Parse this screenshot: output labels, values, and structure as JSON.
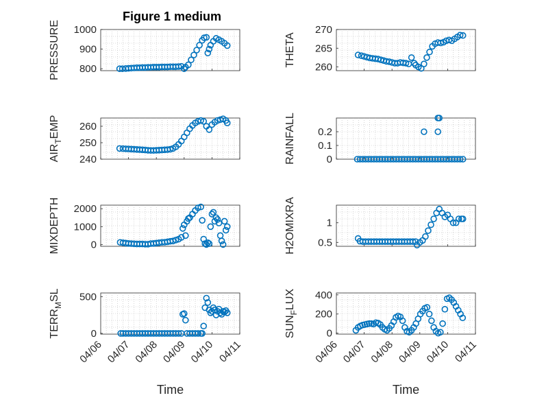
{
  "figure_title": "Figure 1 medium",
  "colors": {
    "series": "#0072bd",
    "axes": "#262626",
    "grid": "#b8b8b8"
  },
  "chart_data": [
    {
      "type": "scatter",
      "ylabel": "PRESSURE",
      "xlabel": "",
      "xlim": [
        0,
        5
      ],
      "xticks": [],
      "ylim": [
        790,
        1000
      ],
      "yticks": [
        800,
        900,
        1000
      ],
      "ytick_labels": [
        "800",
        "900",
        "1000"
      ],
      "grid": true,
      "series": [
        {
          "x": [
            0.68,
            0.78,
            0.9,
            1.0,
            1.1,
            1.2,
            1.3,
            1.4,
            1.5,
            1.6,
            1.7,
            1.8,
            1.9,
            2.0,
            2.1,
            2.2,
            2.3,
            2.4,
            2.5,
            2.6,
            2.7,
            2.8,
            2.9,
            3.0,
            3.05,
            3.15,
            3.25,
            3.35,
            3.45,
            3.55,
            3.65,
            3.72,
            3.8,
            3.85,
            3.9,
            3.95,
            4.05,
            4.15,
            4.25,
            4.35,
            4.45,
            4.55
          ],
          "y": [
            800,
            800,
            801,
            802,
            803,
            804,
            805,
            805,
            806,
            806,
            807,
            807,
            808,
            808,
            808,
            809,
            809,
            809,
            810,
            810,
            810,
            811,
            812,
            800,
            808,
            820,
            845,
            870,
            895,
            920,
            945,
            958,
            960,
            880,
            900,
            920,
            940,
            955,
            948,
            940,
            930,
            918
          ]
        }
      ]
    },
    {
      "type": "scatter",
      "ylabel": "THETA",
      "xlabel": "",
      "xlim": [
        0,
        5
      ],
      "xticks": [],
      "ylim": [
        259,
        270
      ],
      "yticks": [
        260,
        265,
        270
      ],
      "ytick_labels": [
        "260",
        "265",
        "270"
      ],
      "grid": true,
      "series": [
        {
          "x": [
            0.78,
            0.9,
            1.0,
            1.1,
            1.2,
            1.3,
            1.4,
            1.5,
            1.6,
            1.7,
            1.8,
            1.9,
            2.0,
            2.1,
            2.2,
            2.3,
            2.4,
            2.5,
            2.6,
            2.7,
            2.8,
            2.85,
            2.95,
            3.05,
            3.15,
            3.25,
            3.35,
            3.45,
            3.55,
            3.65,
            3.75,
            3.85,
            3.95,
            4.05,
            4.15,
            4.25,
            4.35,
            4.45,
            4.55
          ],
          "y": [
            263.2,
            263.0,
            262.8,
            262.6,
            262.4,
            262.3,
            262.2,
            262.1,
            261.9,
            261.7,
            261.5,
            261.4,
            261.2,
            261.0,
            261.0,
            261.2,
            261.1,
            261.0,
            260.8,
            262.5,
            261.0,
            260.5,
            260.0,
            259.6,
            260.8,
            262.5,
            264.0,
            265.5,
            266.2,
            266.5,
            266.4,
            266.6,
            267.0,
            267.2,
            267.0,
            267.5,
            268.0,
            268.5,
            268.4
          ]
        }
      ]
    },
    {
      "type": "scatter",
      "ylabel": "AIR_TEMP",
      "ylabel_parts": {
        "main": "AIR",
        "sub": "T",
        "rest": "EMP"
      },
      "xlabel": "",
      "xlim": [
        0,
        5
      ],
      "xticks": [],
      "ylim": [
        240,
        265
      ],
      "yticks": [
        240,
        250,
        260
      ],
      "ytick_labels": [
        "240",
        "250",
        "260"
      ],
      "grid": true,
      "series": [
        {
          "x": [
            0.68,
            0.8,
            0.9,
            1.0,
            1.1,
            1.2,
            1.3,
            1.4,
            1.5,
            1.6,
            1.7,
            1.8,
            1.9,
            2.0,
            2.1,
            2.2,
            2.3,
            2.4,
            2.5,
            2.6,
            2.7,
            2.8,
            2.9,
            3.0,
            3.1,
            3.2,
            3.3,
            3.4,
            3.5,
            3.6,
            3.7,
            3.8,
            3.9,
            4.0,
            4.1,
            4.2,
            4.3,
            4.4,
            4.5,
            4.55
          ],
          "y": [
            246.5,
            246.4,
            246.3,
            246.2,
            246.1,
            246.0,
            245.9,
            245.8,
            245.7,
            245.6,
            245.4,
            245.3,
            245.3,
            245.4,
            245.5,
            245.6,
            245.7,
            245.8,
            246.0,
            246.5,
            247.5,
            249.0,
            251.0,
            253.5,
            256.0,
            258.5,
            260.5,
            262.0,
            263.0,
            263.5,
            263.0,
            260.0,
            258.0,
            261.0,
            262.5,
            263.5,
            264.0,
            264.5,
            263.5,
            262.0
          ]
        }
      ]
    },
    {
      "type": "scatter",
      "ylabel": "RAINFALL",
      "xlabel": "",
      "xlim": [
        0,
        5
      ],
      "xticks": [],
      "ylim": [
        0,
        0.3
      ],
      "yticks": [
        0,
        0.1,
        0.2
      ],
      "ytick_labels": [
        "0",
        "0.1",
        "0.2"
      ],
      "grid": true,
      "series": [
        {
          "x": [
            0.75,
            0.85,
            0.95,
            1.05,
            1.15,
            1.25,
            1.35,
            1.45,
            1.55,
            1.65,
            1.75,
            1.85,
            1.95,
            2.05,
            2.15,
            2.25,
            2.35,
            2.45,
            2.55,
            2.65,
            2.75,
            2.85,
            2.95,
            3.05,
            3.15,
            3.25,
            3.35,
            3.45,
            3.55,
            3.65,
            3.75,
            3.85,
            3.95,
            4.05,
            4.15,
            4.25,
            4.35,
            4.45,
            4.55,
            3.15,
            3.65,
            3.65,
            3.7
          ],
          "y": [
            0,
            0,
            0,
            0,
            0,
            0,
            0,
            0,
            0,
            0,
            0,
            0,
            0,
            0,
            0,
            0,
            0,
            0,
            0,
            0,
            0,
            0,
            0,
            0,
            0,
            0,
            0,
            0,
            0,
            0,
            0,
            0,
            0,
            0,
            0,
            0,
            0,
            0,
            0,
            0.2,
            0.2,
            0.3,
            0.3
          ]
        }
      ]
    },
    {
      "type": "scatter",
      "ylabel": "MIXDEPTH",
      "xlabel": "",
      "xlim": [
        0,
        5
      ],
      "xticks": [],
      "ylim": [
        -100,
        2200
      ],
      "yticks": [
        0,
        1000,
        2000
      ],
      "ytick_labels": [
        "0",
        "1000",
        "2000"
      ],
      "grid": true,
      "series": [
        {
          "x": [
            0.7,
            0.8,
            0.9,
            1.0,
            1.1,
            1.2,
            1.3,
            1.4,
            1.5,
            1.6,
            1.7,
            1.8,
            1.9,
            2.0,
            2.1,
            2.2,
            2.3,
            2.4,
            2.5,
            2.6,
            2.7,
            2.8,
            2.9,
            2.95,
            3.0,
            3.05,
            3.1,
            3.15,
            3.2,
            3.3,
            3.4,
            3.5,
            3.6,
            3.65,
            3.7,
            3.75,
            3.8,
            3.85,
            3.9,
            3.95,
            4.0,
            4.05,
            4.1,
            4.15,
            4.2,
            4.25,
            4.3,
            4.35,
            4.4,
            4.45,
            4.5,
            4.55
          ],
          "y": [
            120,
            100,
            80,
            60,
            50,
            40,
            30,
            30,
            30,
            20,
            20,
            50,
            60,
            80,
            100,
            120,
            130,
            150,
            180,
            200,
            250,
            300,
            400,
            900,
            1100,
            500,
            1300,
            1450,
            1500,
            1700,
            1900,
            2050,
            2100,
            1350,
            300,
            50,
            0,
            100,
            50,
            1000,
            1700,
            1800,
            1300,
            1500,
            1400,
            1200,
            500,
            200,
            0,
            1300,
            800,
            1000
          ]
        }
      ]
    },
    {
      "type": "scatter",
      "ylabel": "H2OMIXRA",
      "xlabel": "",
      "xlim": [
        0,
        5
      ],
      "xticks": [],
      "ylim": [
        0.4,
        1.45
      ],
      "yticks": [
        0.5,
        1
      ],
      "ytick_labels": [
        "0.5",
        "1"
      ],
      "grid": true,
      "series": [
        {
          "x": [
            0.78,
            0.85,
            0.95,
            1.05,
            1.15,
            1.25,
            1.35,
            1.45,
            1.55,
            1.65,
            1.75,
            1.85,
            1.95,
            2.05,
            2.15,
            2.25,
            2.35,
            2.45,
            2.55,
            2.65,
            2.75,
            2.85,
            2.9,
            3.0,
            3.1,
            3.2,
            3.3,
            3.4,
            3.5,
            3.6,
            3.7,
            3.8,
            3.9,
            4.0,
            4.1,
            4.2,
            4.3,
            4.4,
            4.5,
            4.55
          ],
          "y": [
            0.6,
            0.53,
            0.52,
            0.52,
            0.52,
            0.52,
            0.52,
            0.52,
            0.52,
            0.52,
            0.52,
            0.52,
            0.52,
            0.52,
            0.52,
            0.52,
            0.52,
            0.52,
            0.52,
            0.52,
            0.52,
            0.52,
            0.43,
            0.5,
            0.55,
            0.65,
            0.8,
            0.95,
            1.1,
            1.25,
            1.35,
            1.25,
            1.15,
            1.2,
            1.1,
            1.0,
            1.0,
            1.1,
            1.1,
            1.1
          ]
        }
      ]
    },
    {
      "type": "scatter",
      "ylabel": "TERR_MSL",
      "ylabel_parts": {
        "main": "TERR",
        "sub": "M",
        "rest": "SL"
      },
      "xlabel": "Time",
      "xlim": [
        0,
        5
      ],
      "xticks": [
        0,
        1,
        2,
        3,
        4,
        5
      ],
      "xtick_labels": [
        "04/06",
        "04/07",
        "04/08",
        "04/09",
        "04/10",
        "04/11"
      ],
      "ylim": [
        -10,
        550
      ],
      "yticks": [
        0,
        500
      ],
      "ytick_labels": [
        "0",
        "500"
      ],
      "grid": true,
      "series": [
        {
          "x": [
            0.72,
            0.8,
            0.9,
            1.0,
            1.1,
            1.2,
            1.3,
            1.4,
            1.5,
            1.6,
            1.7,
            1.8,
            1.9,
            2.0,
            2.1,
            2.2,
            2.3,
            2.4,
            2.5,
            2.6,
            2.7,
            2.8,
            2.9,
            2.95,
            3.0,
            3.05,
            3.1,
            3.2,
            3.3,
            3.4,
            3.5,
            3.6,
            3.65,
            3.7,
            3.75,
            3.8,
            3.85,
            3.9,
            3.95,
            4.0,
            4.05,
            4.1,
            4.15,
            4.2,
            4.25,
            4.3,
            4.35,
            4.4,
            4.45,
            4.5,
            4.55
          ],
          "y": [
            0,
            0,
            0,
            0,
            0,
            0,
            0,
            0,
            0,
            0,
            0,
            0,
            0,
            0,
            0,
            0,
            0,
            0,
            0,
            0,
            0,
            0,
            0,
            260,
            270,
            180,
            0,
            0,
            0,
            0,
            0,
            0,
            0,
            100,
            350,
            480,
            420,
            320,
            280,
            300,
            350,
            320,
            250,
            300,
            330,
            280,
            260,
            300,
            290,
            310,
            280
          ]
        }
      ]
    },
    {
      "type": "scatter",
      "ylabel": "SUN_FLUX",
      "ylabel_parts": {
        "main": "SUN",
        "sub": "F",
        "rest": "LUX"
      },
      "xlabel": "Time",
      "xlim": [
        0,
        5
      ],
      "xticks": [
        0,
        1,
        2,
        3,
        4,
        5
      ],
      "xtick_labels": [
        "04/06",
        "04/07",
        "04/08",
        "04/09",
        "04/10",
        "04/11"
      ],
      "ylim": [
        -10,
        420
      ],
      "yticks": [
        0,
        200,
        400
      ],
      "ytick_labels": [
        "0",
        "200",
        "400"
      ],
      "grid": true,
      "series": [
        {
          "x": [
            0.7,
            0.78,
            0.86,
            0.94,
            1.02,
            1.1,
            1.18,
            1.26,
            1.34,
            1.42,
            1.5,
            1.58,
            1.66,
            1.74,
            1.82,
            1.9,
            1.98,
            2.06,
            2.14,
            2.22,
            2.3,
            2.38,
            2.46,
            2.54,
            2.62,
            2.7,
            2.78,
            2.86,
            2.94,
            3.02,
            3.1,
            3.18,
            3.26,
            3.34,
            3.42,
            3.5,
            3.58,
            3.66,
            3.74,
            3.82,
            3.9,
            3.98,
            4.06,
            4.14,
            4.22,
            4.3,
            4.38,
            4.46,
            4.54
          ],
          "y": [
            30,
            60,
            75,
            85,
            90,
            95,
            100,
            100,
            95,
            110,
            105,
            90,
            60,
            40,
            30,
            50,
            80,
            120,
            165,
            180,
            170,
            130,
            60,
            20,
            10,
            30,
            60,
            100,
            150,
            200,
            230,
            260,
            270,
            200,
            130,
            60,
            20,
            0,
            10,
            100,
            250,
            360,
            370,
            350,
            320,
            280,
            240,
            200,
            160
          ]
        }
      ]
    }
  ]
}
